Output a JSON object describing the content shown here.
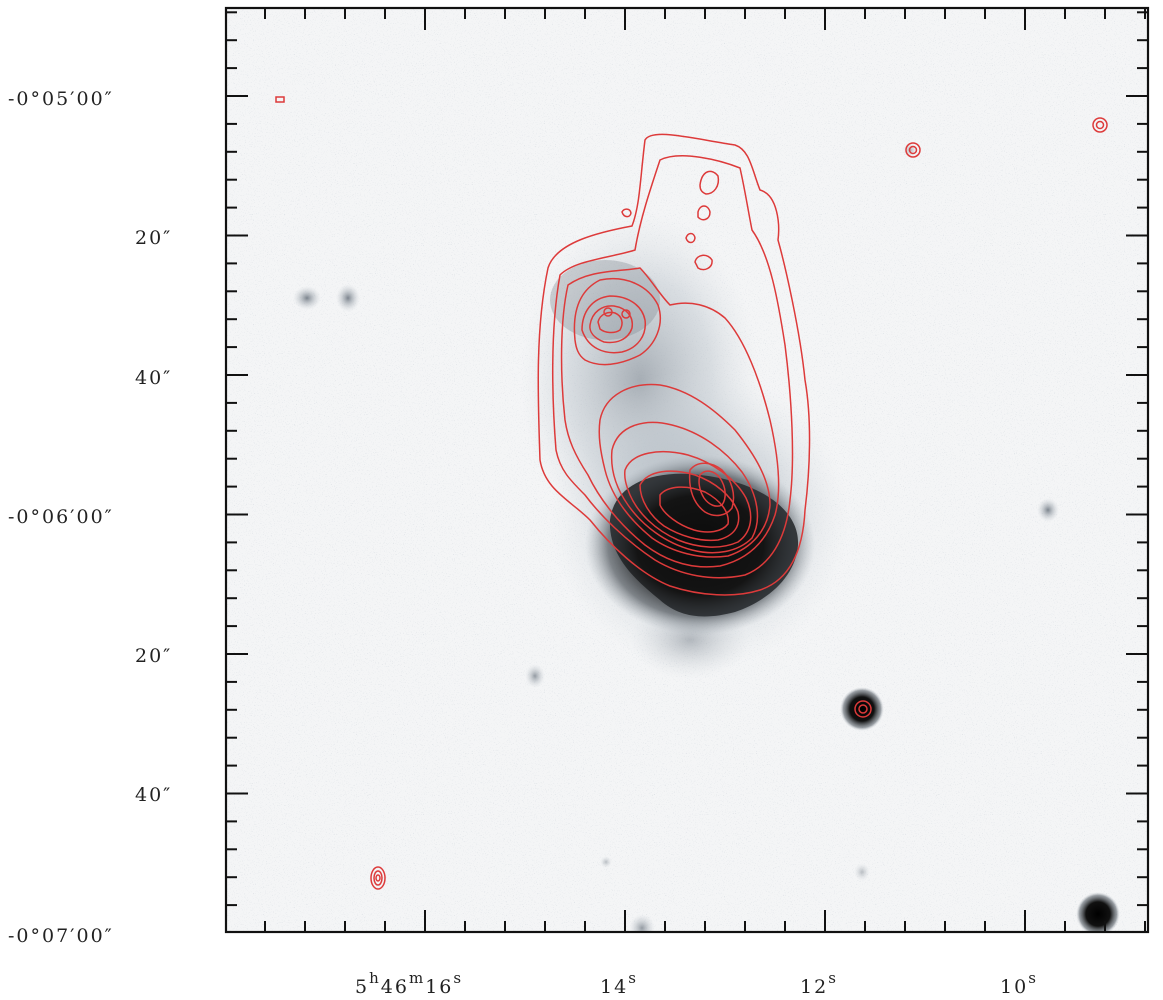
{
  "figure": {
    "colors": {
      "contour": "#dd3a3a",
      "background": "#f4f5f6",
      "galaxy_core": "#111111"
    },
    "y_axis": {
      "labels": [
        {
          "text": "-0°05′00″"
        },
        {
          "text": "20″"
        },
        {
          "text": "40″"
        },
        {
          "text": "-0°06′00″"
        },
        {
          "text": "20″"
        },
        {
          "text": "40″"
        },
        {
          "text": "-0°07′00″"
        }
      ]
    },
    "x_axis": {
      "main_label": {
        "hour": "5",
        "h": "h",
        "min": "46",
        "m": "m",
        "sec": "16",
        "s": "s"
      },
      "labels": [
        {
          "num": "14",
          "unit": "s"
        },
        {
          "num": "12",
          "unit": "s"
        },
        {
          "num": "10",
          "unit": "s"
        }
      ]
    }
  }
}
